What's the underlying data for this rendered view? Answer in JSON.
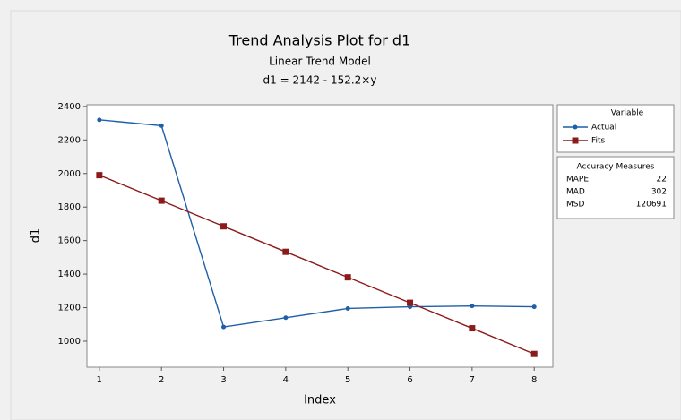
{
  "chart_data": {
    "type": "line",
    "title": "Trend Analysis Plot for d1",
    "subtitle": "Linear Trend Model",
    "equation": "d1 = 2142 - 152.2×y",
    "x_label": "Index",
    "y_label": "d1",
    "x": [
      1,
      2,
      3,
      4,
      5,
      6,
      7,
      8
    ],
    "series": [
      {
        "name": "Actual",
        "color": "#1f5fa8",
        "marker": "circle",
        "values": [
          2320,
          2285,
          1085,
          1140,
          1195,
          1205,
          1210,
          1205
        ]
      },
      {
        "name": "Fits",
        "color": "#8b1a1a",
        "marker": "square",
        "values": [
          1990,
          1838,
          1685,
          1533,
          1381,
          1229,
          1077,
          924
        ]
      }
    ],
    "xlim": [
      0.8,
      8.3
    ],
    "ylim": [
      845,
      2410
    ],
    "xticks": [
      1,
      2,
      3,
      4,
      5,
      6,
      7,
      8
    ],
    "yticks": [
      1000,
      1200,
      1400,
      1600,
      1800,
      2000,
      2200,
      2400
    ],
    "legend_title": "Variable",
    "accuracy": {
      "title": "Accuracy Measures",
      "rows": [
        [
          "MAPE",
          22
        ],
        [
          "MAD",
          302
        ],
        [
          "MSD",
          120691
        ]
      ]
    }
  }
}
